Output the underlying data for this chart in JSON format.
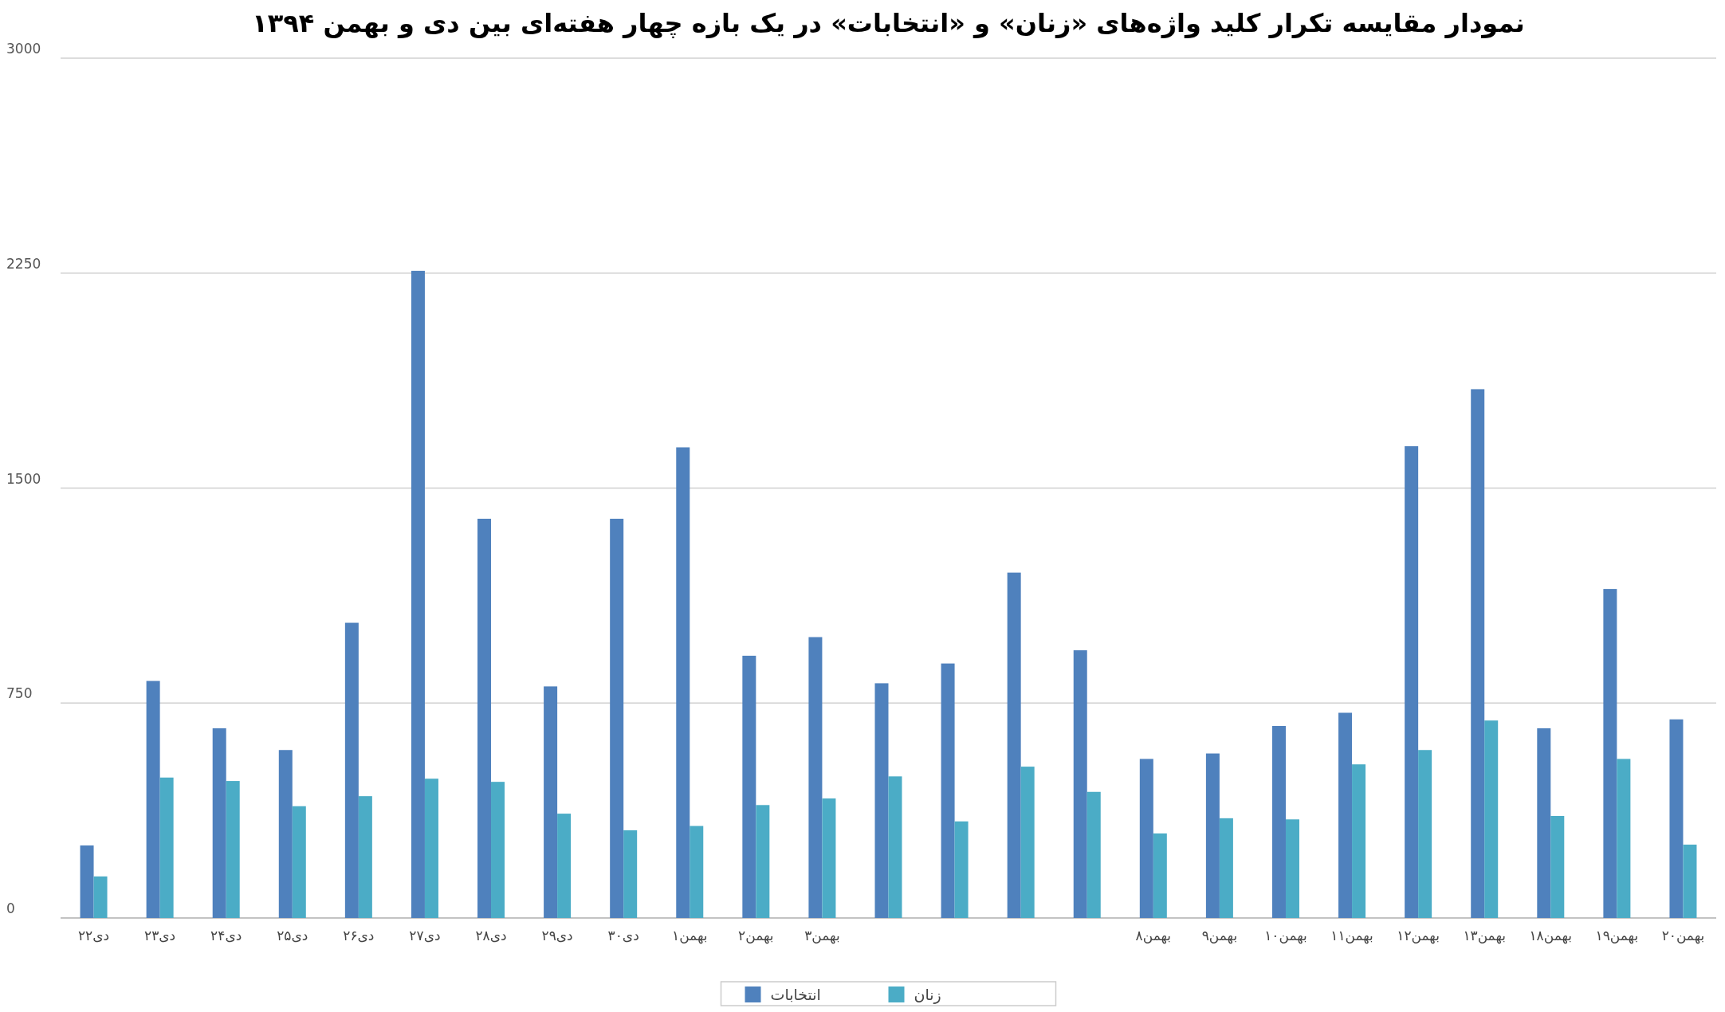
{
  "chart_data": {
    "type": "bar",
    "title": "نمودار مقایسه تکرار کلید واژه‌های «زنان» و «انتخابات» در یک بازه چهار هفته‌ای بین دی و بهمن ۱۳۹۴",
    "categories": [
      "۲۲دی",
      "۲۳دی",
      "۲۴دی",
      "۲۵دی",
      "۲۶دی",
      "۲۷دی",
      "۲۸دی",
      "۲۹دی",
      "۳۰دی",
      "۱بهمن",
      "۲بهمن",
      "۳بهمن",
      null,
      null,
      null,
      null,
      "۸بهمن",
      "۹بهمن",
      "۱۰بهمن",
      "۱۱بهمن",
      "۱۲بهمن",
      "۱۳بهمن",
      "۱۸بهمن",
      "۱۹بهمن",
      "۲۰بهمن"
    ],
    "series": [
      {
        "name": "انتخابات",
        "color": "#4f81bd",
        "values": [
          253,
          827,
          662,
          586,
          1030,
          2258,
          1393,
          808,
          1393,
          1642,
          915,
          980,
          819,
          888,
          1205,
          934,
          555,
          574,
          670,
          716,
          1646,
          1845,
          662,
          1148,
          693
        ]
      },
      {
        "name": "زنان",
        "color": "#4bacc6",
        "values": [
          145,
          490,
          478,
          390,
          425,
          486,
          475,
          364,
          306,
          321,
          394,
          417,
          494,
          337,
          528,
          440,
          295,
          348,
          344,
          536,
          586,
          689,
          356,
          555,
          256
        ]
      }
    ],
    "ylim": [
      0,
      3000
    ],
    "yticks": [
      0,
      750,
      1500,
      2250,
      3000
    ],
    "grid": "y",
    "legend": "bottom"
  }
}
